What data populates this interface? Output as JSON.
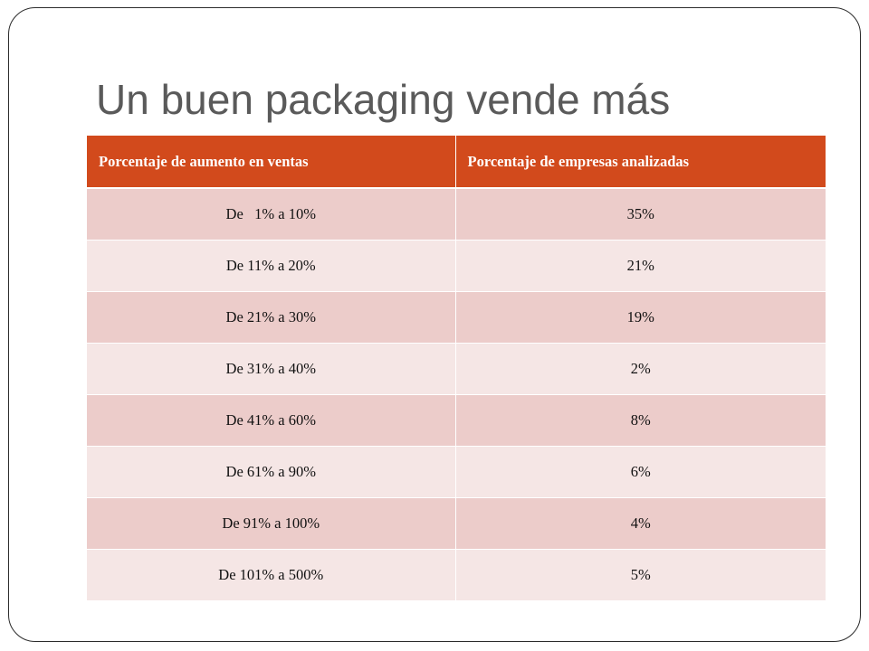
{
  "title": "Un buen packaging vende más",
  "table": {
    "headers": [
      "Porcentaje de aumento en ventas",
      "Porcentaje de empresas analizadas"
    ],
    "rows": [
      {
        "range": "De   1% a 10%",
        "share": "35%"
      },
      {
        "range": "De 11% a 20%",
        "share": "21%"
      },
      {
        "range": "De 21% a 30%",
        "share": "19%"
      },
      {
        "range": "De 31% a 40%",
        "share": "2%"
      },
      {
        "range": "De 41% a 60%",
        "share": "8%"
      },
      {
        "range": "De 61% a 90%",
        "share": "6%"
      },
      {
        "range": "De 91% a 100%",
        "share": "4%"
      },
      {
        "range": "De 101% a 500%",
        "share": "5%"
      }
    ]
  },
  "colors": {
    "header_bg": "#d24a1c",
    "row_odd_bg": "#ecccca",
    "row_even_bg": "#f5e6e5",
    "title_text": "#5a5a5a"
  }
}
